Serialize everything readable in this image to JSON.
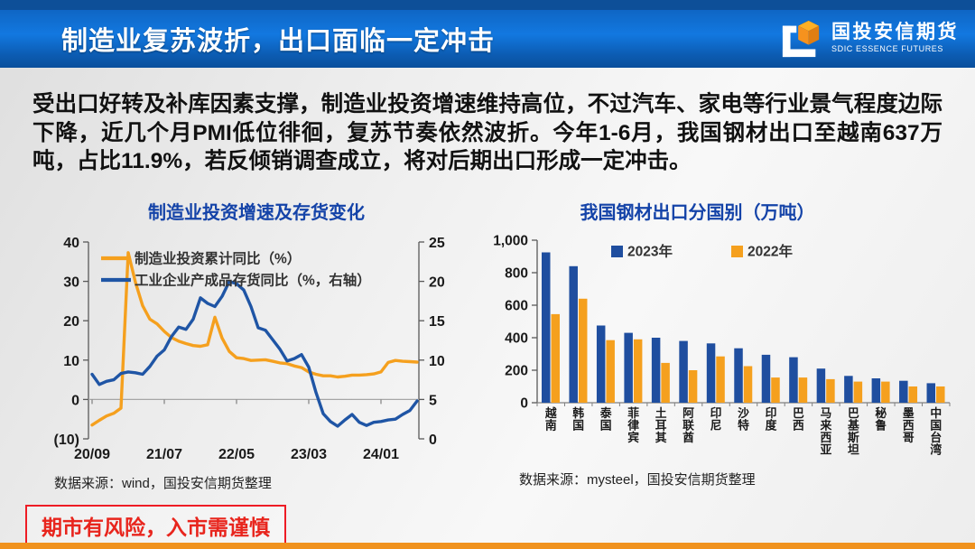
{
  "header": {
    "title": "制造业复苏波折，出口面临一定冲击",
    "logo_cn": "国投安信期货",
    "logo_en": "SDIC ESSENCE FUTURES"
  },
  "intro": "受出口好转及补库因素支撑，制造业投资增速维持高位，不过汽车、家电等行业景气程度边际下降，近几个月PMI低位徘徊，复苏节奏依然波折。今年1-6月，我国钢材出口至越南637万吨，占比11.9%，若反倾销调查成立，将对后期出口形成一定冲击。",
  "chart_data": [
    {
      "type": "line",
      "title": "制造业投资增速及存货变化",
      "source": "数据来源：wind，国投安信期货整理",
      "x_ticks": [
        "20/09",
        "21/07",
        "22/05",
        "23/03",
        "24/01"
      ],
      "x_tick_positions": [
        0,
        10,
        20,
        30,
        40
      ],
      "left_axis": {
        "min": -10,
        "max": 40,
        "ticks": [
          "40",
          "30",
          "20",
          "10",
          "0",
          "(10)"
        ]
      },
      "right_axis": {
        "min": 0,
        "max": 25,
        "ticks": [
          "25",
          "20",
          "15",
          "10",
          "5",
          "0"
        ]
      },
      "legend_position": "top-left-inside",
      "grid": false,
      "series": [
        {
          "name": "制造业投资累计同比（%）",
          "axis": "left",
          "color": "#f5a01e",
          "values": [
            -6.5,
            -5.3,
            -4.2,
            -3.5,
            -2.2,
            37.3,
            29.8,
            23.8,
            20.4,
            19.2,
            17.3,
            15.7,
            14.8,
            14.2,
            13.7,
            13.5,
            13.9,
            20.9,
            15.6,
            12.2,
            10.6,
            10.4,
            9.9,
            10.0,
            10.1,
            9.7,
            9.3,
            9.1,
            8.5,
            8.1,
            7.0,
            6.4,
            6.0,
            6.0,
            5.7,
            5.9,
            6.2,
            6.2,
            6.3,
            6.5,
            7.0,
            9.4,
            9.9,
            9.7,
            9.6,
            9.5
          ]
        },
        {
          "name": "工业企业产成品存货同比（%，右轴）",
          "axis": "right",
          "color": "#1f55a5",
          "values": [
            8.2,
            6.9,
            7.3,
            7.5,
            8.3,
            8.5,
            8.4,
            8.2,
            9.2,
            10.5,
            11.3,
            13.0,
            14.2,
            13.9,
            15.2,
            17.9,
            17.2,
            16.8,
            18.1,
            20.0,
            19.7,
            18.9,
            16.8,
            14.1,
            13.8,
            12.6,
            11.4,
            9.9,
            10.2,
            10.7,
            9.1,
            5.9,
            3.2,
            2.2,
            1.6,
            2.4,
            3.1,
            2.1,
            1.7,
            2.1,
            2.2,
            2.4,
            2.5,
            3.1,
            3.6,
            4.8
          ]
        }
      ]
    },
    {
      "type": "bar",
      "title": "我国钢材出口分国别（万吨）",
      "source": "数据来源：mysteel，国投安信期货整理",
      "categories": [
        "越南",
        "韩国",
        "泰国",
        "菲律宾",
        "土耳其",
        "阿联酋",
        "印尼",
        "沙特",
        "印度",
        "巴西",
        "马来西亚",
        "巴基斯坦",
        "秘鲁",
        "墨西哥",
        "中国台湾"
      ],
      "ylim": [
        0,
        1000
      ],
      "y_ticks": [
        "1,000",
        "800",
        "600",
        "400",
        "200",
        "0"
      ],
      "legend_position": "top-inside",
      "grid": false,
      "series": [
        {
          "name": "2023年",
          "color": "#1f4e9f",
          "values": [
            925,
            840,
            475,
            430,
            400,
            380,
            365,
            335,
            295,
            280,
            210,
            165,
            150,
            135,
            120
          ]
        },
        {
          "name": "2022年",
          "color": "#f5a01e",
          "values": [
            545,
            640,
            385,
            390,
            245,
            200,
            285,
            225,
            155,
            155,
            145,
            130,
            130,
            100,
            100
          ]
        }
      ]
    }
  ],
  "footer": {
    "risk_text": "期市有风险，入市需谨慎"
  },
  "colors": {
    "header_blue": "#1277e0",
    "header_dark_strip": "#0d4f98",
    "chart_title_blue": "#1443a8",
    "series_blue": "#1f4e9f",
    "series_orange": "#f5a01e",
    "risk_red": "#e8251d",
    "bottom_bar_orange": "#f0921e"
  }
}
